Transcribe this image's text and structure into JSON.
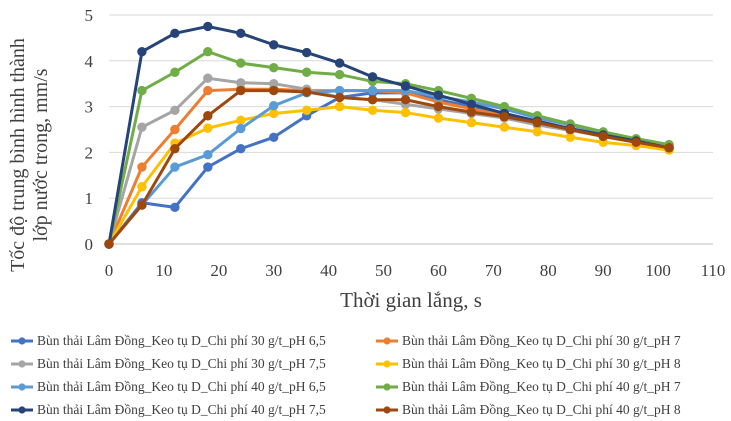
{
  "chart_data": {
    "type": "line",
    "xlabel": "Thời gian lắng, s",
    "ylabel": "Tốc độ trung bình hình thành lớp nước trong, mm/s",
    "xlim": [
      0,
      110
    ],
    "ylim": [
      0,
      5
    ],
    "xticks": [
      0,
      10,
      20,
      30,
      40,
      50,
      60,
      70,
      80,
      90,
      100,
      110
    ],
    "yticks": [
      0,
      1,
      2,
      3,
      4,
      5
    ],
    "grid": true,
    "legend_position": "bottom",
    "x": [
      0,
      6,
      12,
      18,
      24,
      30,
      36,
      42,
      48,
      54,
      60,
      66,
      72,
      78,
      84,
      90,
      96,
      102
    ],
    "series": [
      {
        "name": "Bùn thải Lâm Đồng_Keo tụ D_Chi phí 30 g/t_pH 6,5",
        "color": "#4472C4",
        "values": [
          0,
          0.9,
          0.8,
          1.68,
          2.08,
          2.33,
          2.8,
          3.2,
          3.3,
          3.3,
          3.15,
          3.0,
          2.85,
          2.68,
          2.52,
          2.38,
          2.25,
          2.1
        ]
      },
      {
        "name": "Bùn thải Lâm Đồng_Keo tụ D_Chi phí 30 g/t_pH 7",
        "color": "#ED7D31",
        "values": [
          0,
          1.68,
          2.5,
          3.35,
          3.38,
          3.38,
          3.35,
          3.35,
          3.35,
          3.3,
          3.1,
          2.95,
          2.8,
          2.65,
          2.5,
          2.35,
          2.22,
          2.1
        ]
      },
      {
        "name": "Bùn thải Lâm Đồng_Keo tụ D_Chi phí 30 g/t_pH 7,5",
        "color": "#A5A5A5",
        "values": [
          0,
          2.55,
          2.92,
          3.62,
          3.52,
          3.5,
          3.38,
          3.2,
          3.15,
          3.05,
          2.95,
          2.85,
          2.75,
          2.6,
          2.48,
          2.35,
          2.22,
          2.1
        ]
      },
      {
        "name": "Bùn thải Lâm Đồng_Keo tụ D_Chi phí 30 g/t_pH 8",
        "color": "#FFC000",
        "values": [
          0,
          1.25,
          2.2,
          2.53,
          2.7,
          2.85,
          2.92,
          3.0,
          2.92,
          2.87,
          2.75,
          2.65,
          2.55,
          2.45,
          2.33,
          2.22,
          2.15,
          2.05
        ]
      },
      {
        "name": "Bùn thải Lâm Đồng_Keo tụ D_Chi phí 40 g/t_pH 6,5",
        "color": "#5B9BD5",
        "values": [
          0,
          0.85,
          1.68,
          1.95,
          2.52,
          3.02,
          3.3,
          3.35,
          3.35,
          3.35,
          3.22,
          3.1,
          2.95,
          2.75,
          2.6,
          2.43,
          2.28,
          2.15
        ]
      },
      {
        "name": "Bùn thải Lâm Đồng_Keo tụ D_Chi phí 40 g/t_pH 7",
        "color": "#70AD47",
        "values": [
          0,
          3.35,
          3.75,
          4.2,
          3.95,
          3.85,
          3.75,
          3.7,
          3.55,
          3.5,
          3.35,
          3.18,
          3.0,
          2.8,
          2.62,
          2.45,
          2.3,
          2.17
        ]
      },
      {
        "name": "Bùn thải Lâm Đồng_Keo tụ D_Chi phí 40 g/t_pH 7,5",
        "color": "#264478",
        "values": [
          0,
          4.2,
          4.6,
          4.75,
          4.6,
          4.35,
          4.18,
          3.95,
          3.65,
          3.45,
          3.25,
          3.05,
          2.85,
          2.68,
          2.52,
          2.38,
          2.25,
          2.1
        ]
      },
      {
        "name": "Bùn thải Lâm Đồng_Keo tụ D_Chi phí 40 g/t_pH 8",
        "color": "#9E480E",
        "values": [
          0,
          0.85,
          2.08,
          2.8,
          3.35,
          3.35,
          3.32,
          3.2,
          3.15,
          3.15,
          3.0,
          2.88,
          2.78,
          2.65,
          2.5,
          2.35,
          2.22,
          2.1
        ]
      }
    ]
  }
}
